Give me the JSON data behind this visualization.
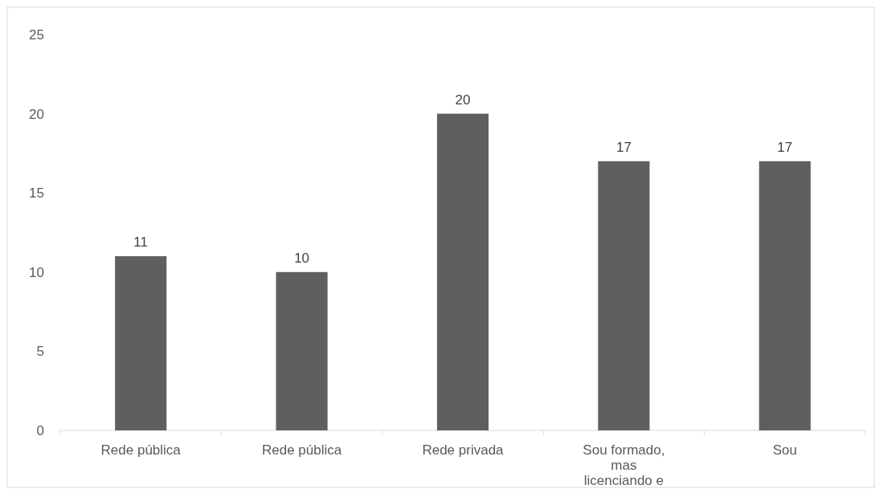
{
  "chart_data": {
    "type": "bar",
    "categories": [
      "Rede pública",
      "Rede pública",
      "Rede privada",
      "Sou formado, mas licenciando e",
      "Sou"
    ],
    "values": [
      11,
      10,
      20,
      17,
      17
    ],
    "color": "#5f5f5f",
    "ylim": [
      0,
      25
    ],
    "yticks": [
      0,
      5,
      10,
      15,
      20,
      25
    ],
    "grid": false,
    "data_labels": true
  }
}
